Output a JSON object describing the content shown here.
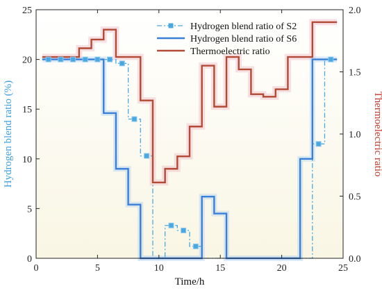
{
  "chart_data": {
    "type": "line",
    "xlabel": "Time/h",
    "ylabel_left": "Hydrogen blend ratio (%)",
    "ylabel_right": "Thermoelectric ratio",
    "xlim": [
      0,
      25
    ],
    "ylim_left": [
      0,
      25
    ],
    "ylim_right": [
      0,
      2.0
    ],
    "x_ticks": [
      0,
      5,
      10,
      15,
      20,
      25
    ],
    "y_left_ticks": [
      0,
      5,
      10,
      15,
      20,
      25
    ],
    "y_right_ticks": [
      "0.0",
      "0.5",
      "1.0",
      "1.5",
      "2.0"
    ],
    "legend_position": "top-right",
    "grid": false,
    "colors": {
      "s2": "#4aa8e0",
      "s6": "#3a7fd8",
      "thermo": "#b24a35",
      "left_axis": "#3aa0e0",
      "right_axis": "#c0392b",
      "bg_top": "#ffffff",
      "bg_bottom": "#f9f6e4"
    },
    "series": [
      {
        "name": "Hydrogen blend ratio of S2",
        "axis": "left",
        "style": "dash-dot-step-with-square-markers",
        "x": [
          1,
          2,
          3,
          4,
          5,
          6,
          7,
          8,
          9,
          10,
          11,
          12,
          13,
          14,
          15,
          16,
          17,
          18,
          19,
          20,
          21,
          22,
          23,
          24
        ],
        "values": [
          20,
          20,
          20,
          20,
          20,
          20,
          19.6,
          14,
          10.3,
          0,
          3.3,
          2.8,
          1.2,
          0,
          0,
          0,
          0,
          0,
          0,
          0,
          0,
          0,
          11.5,
          20
        ]
      },
      {
        "name": "Hydrogen blend ratio of S6",
        "axis": "left",
        "style": "solid-step",
        "x": [
          1,
          2,
          3,
          4,
          5,
          6,
          7,
          8,
          9,
          10,
          11,
          12,
          13,
          14,
          15,
          16,
          17,
          18,
          19,
          20,
          21,
          22,
          23,
          24
        ],
        "values": [
          20,
          20,
          20,
          20,
          20,
          14.6,
          9,
          5.4,
          0,
          0,
          0,
          0,
          0,
          6.2,
          4.5,
          0,
          0,
          0,
          0,
          0,
          0,
          10,
          20,
          20
        ]
      },
      {
        "name": "Thermoelectric ratio",
        "axis": "right",
        "style": "solid-step",
        "x": [
          1,
          2,
          3,
          4,
          5,
          6,
          7,
          8,
          9,
          10,
          11,
          12,
          13,
          14,
          15,
          16,
          17,
          18,
          19,
          20,
          21,
          22,
          23,
          24
        ],
        "values": [
          1.62,
          1.62,
          1.62,
          1.69,
          1.76,
          1.84,
          1.62,
          1.62,
          1.27,
          0.61,
          0.72,
          0.82,
          1.06,
          1.55,
          1.22,
          1.62,
          1.52,
          1.32,
          1.3,
          1.36,
          1.62,
          1.62,
          1.9,
          1.9
        ]
      }
    ]
  }
}
